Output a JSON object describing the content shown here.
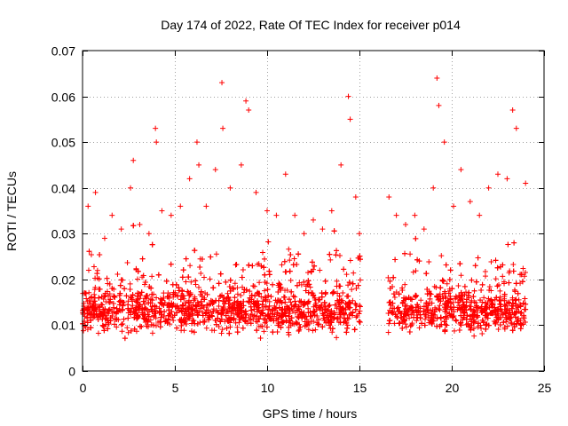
{
  "chart_data": {
    "type": "scatter",
    "title": "Day 174 of 2022, Rate Of TEC Index for receiver p014",
    "xlabel": "GPS time / hours",
    "ylabel": "ROTI / TECUs",
    "xlim": [
      0,
      25
    ],
    "ylim": [
      0,
      0.07
    ],
    "x_ticks": [
      0,
      5,
      10,
      15,
      20,
      25
    ],
    "x_tick_labels": [
      "0",
      "5",
      "10",
      "15",
      "20",
      "25"
    ],
    "y_ticks": [
      0,
      0.01,
      0.02,
      0.03,
      0.04,
      0.05,
      0.06,
      0.07
    ],
    "y_tick_labels": [
      "0",
      "0.01",
      "0.02",
      "0.03",
      "0.04",
      "0.05",
      "0.06",
      "0.07"
    ],
    "grid": true,
    "marker": "plus",
    "color": "#ff0000",
    "data_gap_hours": [
      15.05,
      16.55
    ],
    "series": [
      {
        "name": "p014",
        "x": [
          0.3,
          0.7,
          1.2,
          1.6,
          2.1,
          2.6,
          2.75,
          3.1,
          3.6,
          3.95,
          4.0,
          4.3,
          4.8,
          5.3,
          5.8,
          6.2,
          6.3,
          6.7,
          7.2,
          7.55,
          7.6,
          8.0,
          8.6,
          8.85,
          9.0,
          9.4,
          10.0,
          10.5,
          11.0,
          11.5,
          12.0,
          12.5,
          13.0,
          13.5,
          14.0,
          14.4,
          14.5,
          14.8,
          15.0,
          16.6,
          17.0,
          17.5,
          18.0,
          18.5,
          19.0,
          19.2,
          19.3,
          19.6,
          20.1,
          20.5,
          21.0,
          21.5,
          22.0,
          22.5,
          23.0,
          23.3,
          23.5,
          24.0
        ],
        "y": [
          0.036,
          0.039,
          0.029,
          0.034,
          0.031,
          0.04,
          0.046,
          0.032,
          0.03,
          0.053,
          0.05,
          0.035,
          0.034,
          0.036,
          0.042,
          0.05,
          0.045,
          0.036,
          0.044,
          0.063,
          0.053,
          0.04,
          0.045,
          0.059,
          0.057,
          0.039,
          0.035,
          0.034,
          0.043,
          0.034,
          0.03,
          0.033,
          0.031,
          0.035,
          0.045,
          0.06,
          0.055,
          0.038,
          0.03,
          0.038,
          0.034,
          0.032,
          0.034,
          0.031,
          0.04,
          0.064,
          0.058,
          0.05,
          0.036,
          0.044,
          0.037,
          0.034,
          0.04,
          0.043,
          0.042,
          0.057,
          0.053,
          0.041
        ]
      }
    ]
  }
}
